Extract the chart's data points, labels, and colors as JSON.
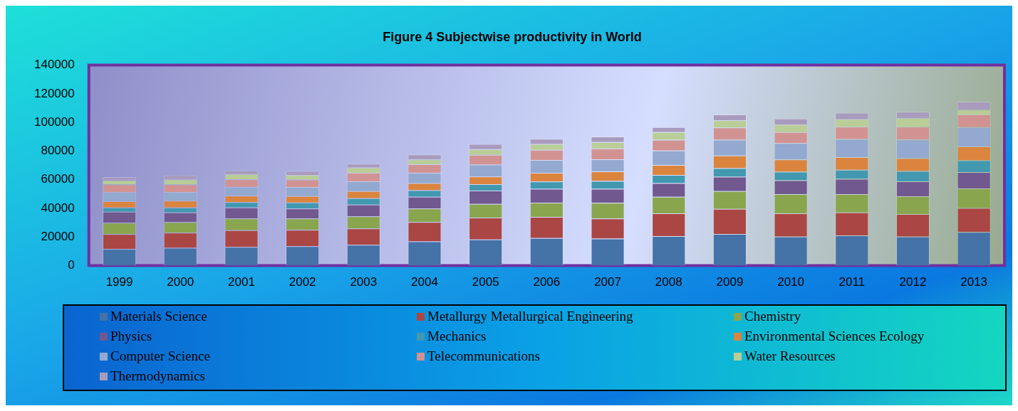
{
  "chart_data": {
    "type": "bar",
    "title": "Figure 4 Subjectwise productivity in World",
    "stacked": true,
    "grid": false,
    "legend": "bottom",
    "categories": [
      "1999",
      "2000",
      "2001",
      "2002",
      "2003",
      "2004",
      "2005",
      "2006",
      "2007",
      "2008",
      "2009",
      "2010",
      "2011",
      "2012",
      "2013"
    ],
    "ylim": [
      0,
      140000
    ],
    "yticks": [
      0,
      20000,
      40000,
      60000,
      80000,
      100000,
      120000,
      140000
    ],
    "series": [
      {
        "name": "Materials Science",
        "color": "#4572a7",
        "values": [
          11700,
          12400,
          13100,
          13600,
          14600,
          16900,
          18300,
          19300,
          18900,
          20600,
          22200,
          20300,
          21200,
          20300,
          23500
        ]
      },
      {
        "name": "Metallurgy Metallurgical Engineering",
        "color": "#aa4643",
        "values": [
          10300,
          10600,
          11600,
          11400,
          11400,
          13600,
          15200,
          14700,
          14100,
          16000,
          17400,
          16300,
          15900,
          15800,
          16800
        ]
      },
      {
        "name": "Chemistry",
        "color": "#89a54e",
        "values": [
          7900,
          7500,
          8200,
          7900,
          8400,
          9400,
          9600,
          10000,
          10800,
          11500,
          12400,
          13400,
          12900,
          12400,
          13600
        ]
      },
      {
        "name": "Physics",
        "color": "#71588f",
        "values": [
          7700,
          6600,
          7700,
          7000,
          8200,
          8200,
          9300,
          9700,
          9900,
          9500,
          10100,
          9600,
          10600,
          10400,
          11400
        ]
      },
      {
        "name": "Mechanics",
        "color": "#4198af",
        "values": [
          3000,
          3500,
          3700,
          4200,
          4500,
          4600,
          4500,
          5000,
          5400,
          5700,
          6000,
          6000,
          6400,
          7200,
          8200
        ]
      },
      {
        "name": "Environmental Sciences Ecology",
        "color": "#db843d",
        "values": [
          4400,
          4700,
          4500,
          4500,
          4900,
          5000,
          5300,
          6100,
          6700,
          7000,
          8800,
          8600,
          8700,
          8900,
          9700
        ]
      },
      {
        "name": "Computer Science",
        "color": "#93a9cf",
        "values": [
          6400,
          6100,
          6200,
          6300,
          6900,
          7100,
          8300,
          9000,
          8500,
          10100,
          11000,
          11400,
          12700,
          13100,
          13500
        ]
      },
      {
        "name": "Telecommunications",
        "color": "#d19392",
        "values": [
          5200,
          5300,
          5200,
          5200,
          5900,
          6000,
          6900,
          7100,
          7600,
          7500,
          8600,
          7700,
          8600,
          8900,
          8900
        ]
      },
      {
        "name": "Water Resources",
        "color": "#b9cd96",
        "values": [
          3000,
          3500,
          3800,
          3200,
          3700,
          3400,
          4000,
          4000,
          4400,
          5300,
          4900,
          5200,
          5200,
          5900,
          3200
        ]
      },
      {
        "name": "Thermodynamics",
        "color": "#a99bbd",
        "values": [
          2300,
          2900,
          2600,
          2800,
          2700,
          3400,
          3500,
          3700,
          3800,
          3500,
          4200,
          4200,
          4600,
          4500,
          5700
        ]
      }
    ]
  }
}
